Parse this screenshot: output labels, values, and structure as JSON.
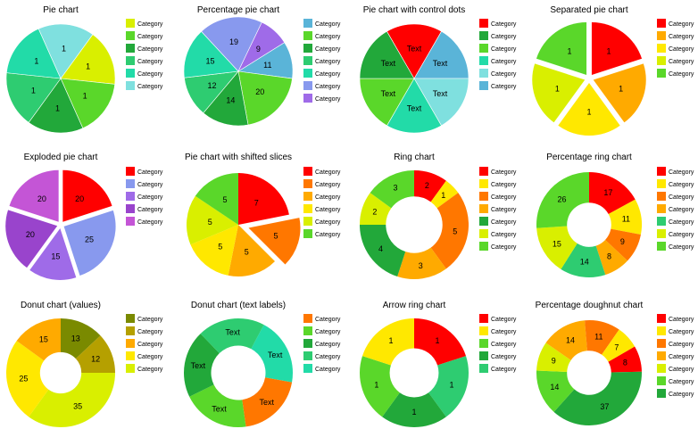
{
  "colors": {
    "red": "#ff0000",
    "orange": "#ff7700",
    "amber": "#ffaa00",
    "yellow": "#ffe800",
    "yellowgreen": "#d9ef00",
    "lime": "#5ad72a",
    "green": "#22a83a",
    "seagreen": "#2ecc71",
    "teal": "#22dba8",
    "aqua": "#7fe0df",
    "sky": "#5ab4d8",
    "periwinkle": "#8899ee",
    "violet": "#9f6be8",
    "purple": "#9944cc",
    "magenta": "#c455d6",
    "olive": "#8a8a00",
    "darkolive": "#7a8a00",
    "gold": "#b5a000"
  },
  "chart_data": [
    {
      "type": "pie",
      "title": "Pie chart",
      "values": [
        1,
        1,
        1,
        1,
        1,
        1
      ],
      "labels": [
        "1",
        "1",
        "1",
        "1",
        "1",
        "1"
      ],
      "colors": [
        "yellowgreen",
        "lime",
        "green",
        "seagreen",
        "teal",
        "aqua"
      ],
      "legend": [
        "Category",
        "Category",
        "Category",
        "Category",
        "Category",
        "Category"
      ],
      "legend_colors": [
        "yellowgreen",
        "lime",
        "green",
        "seagreen",
        "teal",
        "aqua"
      ]
    },
    {
      "type": "pie",
      "title": "Percentage pie chart",
      "values": [
        11,
        20,
        14,
        12,
        15,
        19,
        9
      ],
      "labels": [
        "11",
        "20",
        "14",
        "12",
        "15",
        "19",
        "9"
      ],
      "colors": [
        "sky",
        "lime",
        "green",
        "seagreen",
        "teal",
        "periwinkle",
        "violet"
      ],
      "legend": [
        "Category",
        "Category",
        "Category",
        "Category",
        "Category",
        "Category",
        "Category"
      ],
      "legend_colors": [
        "sky",
        "lime",
        "green",
        "seagreen",
        "teal",
        "periwinkle",
        "violet"
      ]
    },
    {
      "type": "pie",
      "title": "Pie chart with control dots",
      "values": [
        1,
        1,
        1,
        1,
        1,
        1
      ],
      "labels": [
        "Text",
        "Text",
        "Text",
        "Text",
        "Text",
        "Text"
      ],
      "colors": [
        "sky",
        "aqua",
        "teal",
        "lime",
        "green",
        "red"
      ],
      "legend": [
        "Category",
        "Category",
        "Category",
        "Category",
        "Category",
        "Category"
      ],
      "legend_colors": [
        "red",
        "green",
        "lime",
        "teal",
        "aqua",
        "sky"
      ]
    },
    {
      "type": "pie",
      "title": "Separated pie chart",
      "values": [
        1,
        1,
        1,
        1,
        1
      ],
      "labels": [
        "1",
        "1",
        "1",
        "1",
        "1"
      ],
      "colors": [
        "red",
        "amber",
        "yellow",
        "yellowgreen",
        "lime"
      ],
      "explode": [
        5,
        5,
        5,
        5,
        5
      ],
      "legend": [
        "Category",
        "Category",
        "Category",
        "Category",
        "Category"
      ],
      "legend_colors": [
        "red",
        "amber",
        "yellow",
        "yellowgreen",
        "lime"
      ]
    },
    {
      "type": "pie",
      "title": "Exploded pie chart",
      "values": [
        20,
        25,
        15,
        20,
        20
      ],
      "labels": [
        "20",
        "25",
        "15",
        "20",
        "20"
      ],
      "colors": [
        "red",
        "periwinkle",
        "violet",
        "purple",
        "magenta"
      ],
      "explode": [
        4,
        4,
        4,
        4,
        4
      ],
      "legend": [
        "Category",
        "Category",
        "Category",
        "Category",
        "Category"
      ],
      "legend_colors": [
        "red",
        "periwinkle",
        "violet",
        "purple",
        "magenta"
      ]
    },
    {
      "type": "pie",
      "title": "Pie chart with shifted slices",
      "values": [
        7,
        5,
        5,
        5,
        5,
        5
      ],
      "labels": [
        "7",
        "5",
        "5",
        "5",
        "5",
        "5"
      ],
      "colors": [
        "red",
        "orange",
        "amber",
        "yellow",
        "yellowgreen",
        "lime"
      ],
      "explode": [
        0,
        12,
        0,
        0,
        0,
        0
      ],
      "legend": [
        "Category",
        "Category",
        "Category",
        "Category",
        "Category",
        "Category"
      ],
      "legend_colors": [
        "red",
        "orange",
        "amber",
        "yellow",
        "yellowgreen",
        "lime"
      ]
    },
    {
      "type": "ring",
      "title": "Ring chart",
      "values": [
        2,
        1,
        5,
        3,
        4,
        2,
        3
      ],
      "labels": [
        "2",
        "1",
        "5",
        "3",
        "4",
        "2",
        "3"
      ],
      "colors": [
        "red",
        "yellow",
        "orange",
        "amber",
        "green",
        "yellowgreen",
        "lime"
      ],
      "legend": [
        "Category",
        "Category",
        "Category",
        "Category",
        "Category",
        "Category",
        "Category"
      ],
      "legend_colors": [
        "red",
        "yellow",
        "orange",
        "amber",
        "green",
        "yellowgreen",
        "lime"
      ]
    },
    {
      "type": "ring",
      "title": "Percentage ring chart",
      "values": [
        17,
        11,
        9,
        8,
        14,
        15,
        26
      ],
      "labels": [
        "17",
        "11",
        "9",
        "8",
        "14",
        "15",
        "26"
      ],
      "colors": [
        "red",
        "yellow",
        "orange",
        "amber",
        "seagreen",
        "yellowgreen",
        "lime"
      ],
      "legend": [
        "Category",
        "Category",
        "Category",
        "Category",
        "Category",
        "Category",
        "Category"
      ],
      "legend_colors": [
        "red",
        "yellow",
        "orange",
        "amber",
        "seagreen",
        "yellowgreen",
        "lime"
      ]
    },
    {
      "type": "ring",
      "title": "Donut chart (values)",
      "values": [
        13,
        12,
        35,
        25,
        15
      ],
      "labels": [
        "13",
        "12",
        "35",
        "25",
        "15"
      ],
      "colors": [
        "darkolive",
        "gold",
        "yellowgreen",
        "yellow",
        "amber"
      ],
      "legend": [
        "Category",
        "Category",
        "Category",
        "Category",
        "Category"
      ],
      "legend_colors": [
        "darkolive",
        "gold",
        "amber",
        "yellow",
        "yellowgreen"
      ]
    },
    {
      "type": "ring",
      "title": "Donut chart (text labels)",
      "values": [
        1,
        1,
        1,
        1,
        1
      ],
      "labels": [
        "Text",
        "Text",
        "Text",
        "Text",
        "Text"
      ],
      "colors": [
        "teal",
        "orange",
        "lime",
        "green",
        "seagreen"
      ],
      "legend": [
        "Category",
        "Category",
        "Category",
        "Category",
        "Category"
      ],
      "legend_colors": [
        "orange",
        "lime",
        "green",
        "seagreen",
        "teal"
      ]
    },
    {
      "type": "ring",
      "title": "Arrow ring chart",
      "values": [
        1,
        1,
        1,
        1,
        1
      ],
      "labels": [
        "1",
        "1",
        "1",
        "1",
        "1"
      ],
      "colors": [
        "red",
        "seagreen",
        "green",
        "lime",
        "yellow"
      ],
      "legend": [
        "Category",
        "Category",
        "Category",
        "Category",
        "Category"
      ],
      "legend_colors": [
        "red",
        "yellow",
        "lime",
        "green",
        "seagreen"
      ]
    },
    {
      "type": "ring",
      "title": "Percentage doughnut chart",
      "values": [
        8,
        37,
        14,
        9,
        14,
        11,
        7
      ],
      "labels": [
        "8",
        "37",
        "14",
        "9",
        "14",
        "11",
        "7"
      ],
      "colors": [
        "red",
        "green",
        "lime",
        "yellowgreen",
        "amber",
        "orange",
        "yellow"
      ],
      "legend": [
        "Category",
        "Category",
        "Category",
        "Category",
        "Category",
        "Category",
        "Category"
      ],
      "legend_colors": [
        "red",
        "yellow",
        "orange",
        "amber",
        "yellowgreen",
        "lime",
        "green"
      ]
    }
  ]
}
